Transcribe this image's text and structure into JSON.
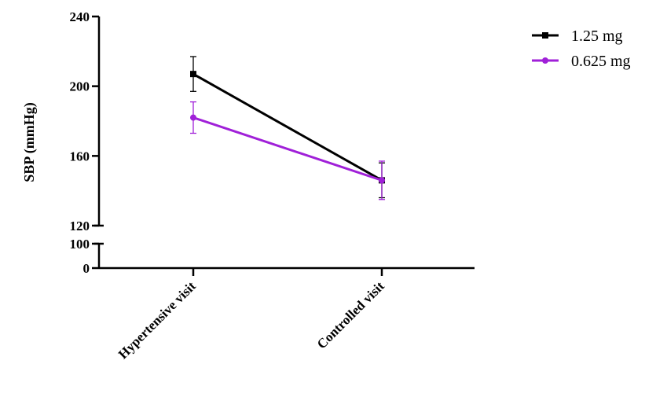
{
  "chart_data": {
    "type": "line",
    "title": "",
    "ylabel": "SBP (mmHg)",
    "xlabel": "",
    "categories": [
      "Hypertensive visit",
      "Controlled visit"
    ],
    "y_axis": {
      "broken": true,
      "lower_segment": {
        "range": [
          0,
          100
        ],
        "ticks": [
          0,
          100
        ]
      },
      "upper_segment": {
        "range": [
          120,
          240
        ],
        "ticks": [
          120,
          160,
          200,
          240
        ]
      }
    },
    "grid": false,
    "legend_position": "top-right",
    "series": [
      {
        "name": "1.25 mg",
        "color": "#000000",
        "marker": "square",
        "values": [
          207,
          146
        ],
        "error": [
          10,
          10
        ]
      },
      {
        "name": "0.625 mg",
        "color": "#a020d8",
        "marker": "circle",
        "values": [
          182,
          146
        ],
        "error": [
          9,
          11
        ]
      }
    ]
  }
}
